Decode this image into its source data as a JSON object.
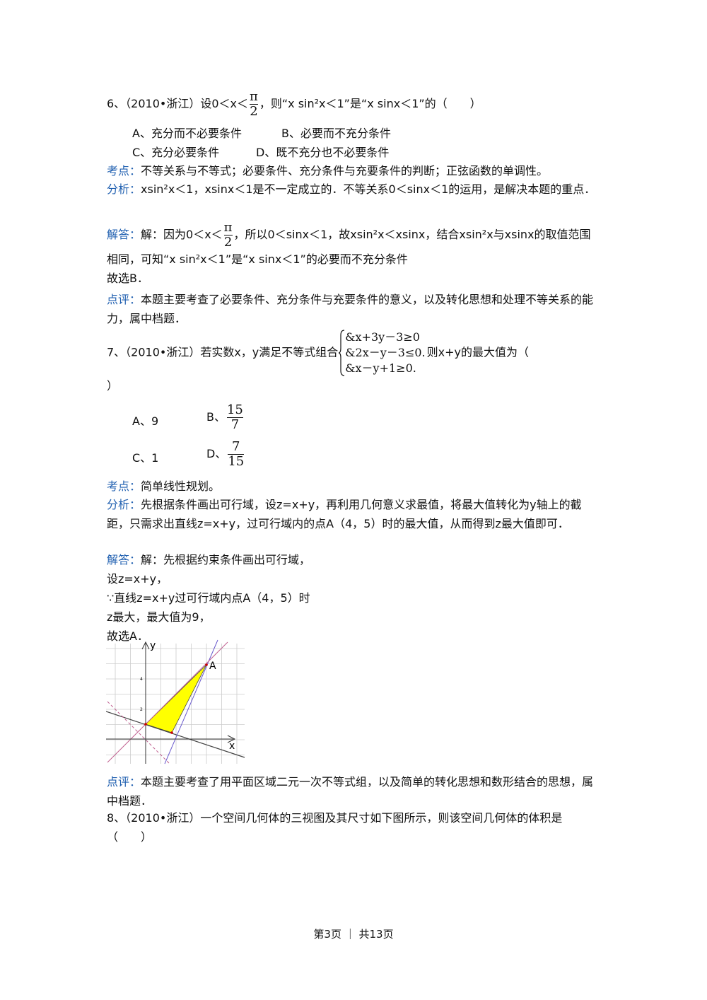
{
  "q6": {
    "stem_pre": "6、（2010•浙江）设0＜x＜",
    "stem_frac": {
      "num": "π",
      "den": "2"
    },
    "stem_post": "，则“x sin²x＜1”是“x sinx＜1”的（　　）",
    "options": [
      "A、充分而不必要条件",
      "B、必要而不充分条件",
      "C、充分必要条件",
      "D、既不充分也不必要条件"
    ],
    "kaodian_label": "考点：",
    "kaodian": "不等关系与不等式；必要条件、充分条件与充要条件的判断；正弦函数的单调性。",
    "fenxi_label": "分析：",
    "fenxi": "xsin²x＜1，xsinx＜1是不一定成立的．不等关系0＜sinx＜1的运用，是解决本题的重点．",
    "jieda_label": "解答：",
    "jieda_pre": "解：因为0＜x＜",
    "jieda_frac": {
      "num": "π",
      "den": "2"
    },
    "jieda_post": "，所以0＜sinx＜1，故xsin²x＜xsinx，结合xsin²x与xsinx的取值范围相同，可知“x sin²x＜1”是“x sinx＜1”的必要而不充分条件",
    "jieda_end": "故选B．",
    "dianping_label": "点评：",
    "dianping": "本题主要考查了必要条件、充分条件与充要条件的意义，以及转化思想和处理不等关系的能力，属中档题．"
  },
  "q7": {
    "stem_pre": "7、（2010•浙江）若实数x，y满足不等式组合",
    "system": [
      "&x+3y－3≥0",
      "&2x－y－3≤0.",
      "&x－y+1≥0."
    ],
    "stem_post": "则x+y的最大值为（",
    "stem_end": "）",
    "options": [
      {
        "label": "A、9"
      },
      {
        "label": "B、",
        "num": "15",
        "den": "7"
      },
      {
        "label": "C、1"
      },
      {
        "label": "D、",
        "num": "7",
        "den": "15"
      }
    ],
    "kaodian_label": "考点：",
    "kaodian": "简单线性规划。",
    "fenxi_label": "分析：",
    "fenxi": "先根据条件画出可行域，设z=x+y，再利用几何意义求最值，将最大值转化为y轴上的截距，只需求出直线z=x+y，过可行域内的点A（4，5）时的最大值，从而得到z最大值即可．",
    "jieda_label": "解答：",
    "jieda": [
      "解：先根据约束条件画出可行域，",
      "设z=x+y，",
      "∵直线z=x+y过可行域内点A（4，5）时",
      "z最大，最大值为9，",
      "故选A．"
    ],
    "figure": {
      "x_label": "x",
      "y_label": "y",
      "point_label": "A",
      "y_ticks": [
        "2",
        "4"
      ]
    },
    "dianping_label": "点评：",
    "dianping": "本题主要考查了用平面区域二元一次不等式组，以及简单的转化思想和数形结合的思想，属中档题．"
  },
  "q8": {
    "stem": "8、（2010•浙江）一个空间几何体的三视图及其尺寸如下图所示，则该空间几何体的体积是（　　）"
  },
  "footer": "第3页 ｜ 共13页"
}
